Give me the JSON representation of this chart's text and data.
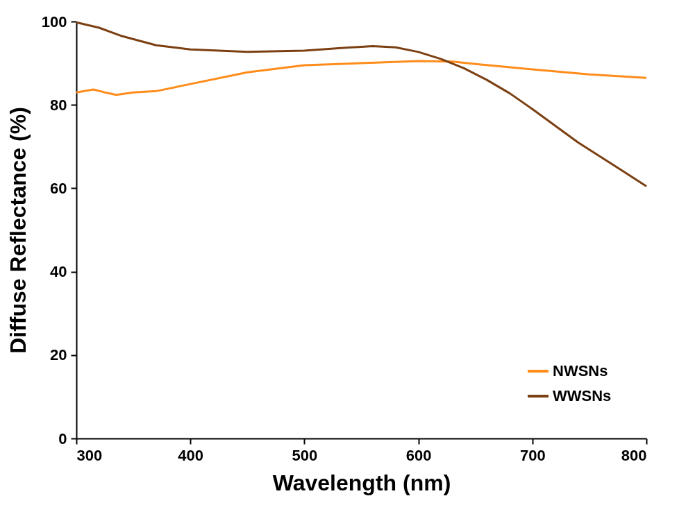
{
  "chart_data": {
    "type": "line",
    "xlabel": "Wavelength (nm)",
    "ylabel": "Diffuse Reflectance (%)",
    "xlim": [
      300,
      800
    ],
    "ylim": [
      0,
      100
    ],
    "xticks": [
      300,
      400,
      500,
      600,
      700,
      800
    ],
    "yticks": [
      0,
      20,
      40,
      60,
      80,
      100
    ],
    "grid": false,
    "legend": "bottom right",
    "marker": "none",
    "line_style": "solid",
    "series": [
      {
        "name": "NWSNs",
        "color": "#ff8c1a",
        "x": [
          300,
          315,
          325,
          335,
          350,
          370,
          400,
          450,
          500,
          550,
          600,
          630,
          650,
          700,
          750,
          800
        ],
        "values": [
          83.0,
          83.7,
          83.0,
          82.4,
          83.0,
          83.3,
          85.0,
          87.8,
          89.5,
          90.0,
          90.5,
          90.4,
          89.8,
          88.5,
          87.3,
          86.5
        ]
      },
      {
        "name": "WWSNs",
        "color": "#7b3f12",
        "x": [
          300,
          320,
          340,
          370,
          400,
          450,
          500,
          530,
          560,
          580,
          600,
          620,
          640,
          660,
          680,
          700,
          720,
          740,
          760,
          780,
          800
        ],
        "values": [
          99.8,
          98.5,
          96.5,
          94.3,
          93.3,
          92.7,
          93.0,
          93.6,
          94.1,
          93.8,
          92.7,
          91.0,
          88.8,
          86.0,
          82.8,
          79.0,
          75.0,
          71.0,
          67.5,
          64.0,
          60.5
        ]
      }
    ]
  }
}
